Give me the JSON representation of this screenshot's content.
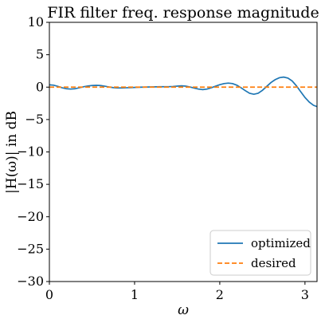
{
  "chart_data": {
    "type": "line",
    "title": "FIR filter freq. response magnitude",
    "xlabel": "ω",
    "ylabel": "|H(ω)| in dB",
    "xlim": [
      0,
      3.14159
    ],
    "ylim": [
      -30,
      10
    ],
    "xticks": [
      0,
      1,
      2,
      3
    ],
    "yticks": [
      -30,
      -25,
      -20,
      -15,
      -10,
      -5,
      0,
      5,
      10
    ],
    "legend_position": "lower-right",
    "grid": false,
    "series": [
      {
        "name": "optimized",
        "color": "#1f77b4",
        "style": "solid",
        "x": [
          0.0,
          0.05,
          0.1,
          0.15,
          0.2,
          0.25,
          0.3,
          0.35,
          0.4,
          0.45,
          0.5,
          0.55,
          0.6,
          0.65,
          0.7,
          0.75,
          0.8,
          0.85,
          0.9,
          0.95,
          1.0,
          1.05,
          1.1,
          1.15,
          1.2,
          1.25,
          1.3,
          1.35,
          1.4,
          1.45,
          1.5,
          1.55,
          1.6,
          1.65,
          1.7,
          1.75,
          1.8,
          1.85,
          1.9,
          1.95,
          2.0,
          2.05,
          2.1,
          2.15,
          2.2,
          2.25,
          2.3,
          2.35,
          2.4,
          2.45,
          2.5,
          2.55,
          2.6,
          2.65,
          2.7,
          2.75,
          2.8,
          2.85,
          2.9,
          2.95,
          3.0,
          3.05,
          3.1,
          3.14
        ],
        "y": [
          0.35,
          0.3,
          0.12,
          -0.1,
          -0.25,
          -0.3,
          -0.25,
          -0.1,
          0.05,
          0.18,
          0.25,
          0.28,
          0.25,
          0.15,
          0.02,
          -0.08,
          -0.12,
          -0.12,
          -0.1,
          -0.08,
          -0.05,
          -0.02,
          0.0,
          0.02,
          0.04,
          0.05,
          0.06,
          0.06,
          0.07,
          0.1,
          0.15,
          0.2,
          0.15,
          0.02,
          -0.15,
          -0.3,
          -0.38,
          -0.3,
          -0.1,
          0.15,
          0.38,
          0.55,
          0.62,
          0.55,
          0.3,
          -0.1,
          -0.55,
          -0.95,
          -1.1,
          -0.95,
          -0.5,
          0.1,
          0.7,
          1.15,
          1.45,
          1.55,
          1.4,
          0.95,
          0.2,
          -0.7,
          -1.6,
          -2.3,
          -2.8,
          -3.0
        ]
      },
      {
        "name": "desired",
        "color": "#ff7f0e",
        "style": "dashed",
        "x": [
          0,
          3.14159
        ],
        "y": [
          0,
          0
        ]
      }
    ]
  }
}
